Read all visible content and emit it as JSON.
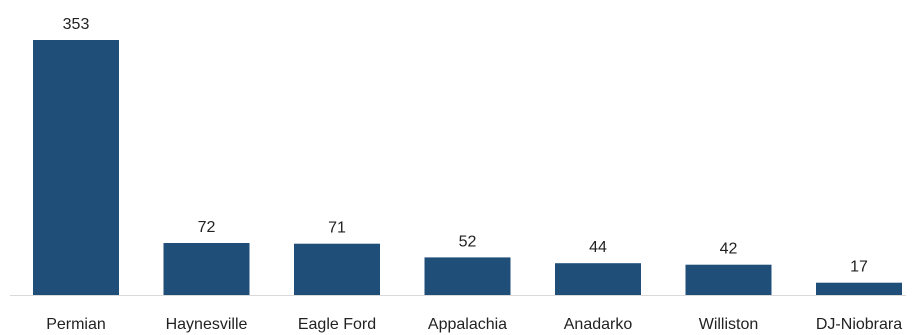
{
  "chart_data": {
    "type": "bar",
    "categories": [
      "Permian",
      "Haynesville",
      "Eagle Ford",
      "Appalachia",
      "Anadarko",
      "Williston",
      "DJ-Niobrara"
    ],
    "values": [
      353,
      72,
      71,
      52,
      44,
      42,
      17
    ],
    "title": "",
    "xlabel": "",
    "ylabel": "",
    "ylim": [
      0,
      353
    ],
    "grid": false,
    "legend": "none",
    "data_labels": true,
    "bar_color": "#1f4e79",
    "axis_color": "#d9d9d9"
  }
}
